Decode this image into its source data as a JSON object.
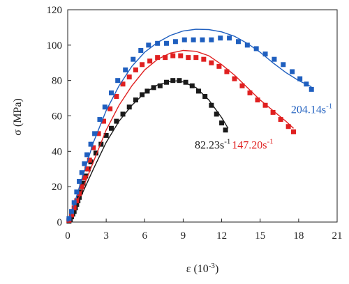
{
  "chart_data": {
    "type": "scatter",
    "xlabel": "ε (10",
    "xlabel_sup": "-3",
    "xlabel_close": ")",
    "ylabel": "σ (MPa)",
    "xlim": [
      0,
      21
    ],
    "ylim": [
      0,
      120
    ],
    "xticks": [
      0,
      3,
      6,
      9,
      12,
      15,
      18,
      21
    ],
    "yticks": [
      0,
      20,
      40,
      60,
      80,
      100,
      120
    ],
    "grid": false,
    "series": [
      {
        "name": "82.23s",
        "name_sup": "-1",
        "color": "#1a1a1a",
        "points": [
          [
            0.1,
            0.5
          ],
          [
            0.2,
            1.5
          ],
          [
            0.3,
            3
          ],
          [
            0.4,
            4.5
          ],
          [
            0.5,
            6
          ],
          [
            0.6,
            8
          ],
          [
            0.7,
            10
          ],
          [
            0.8,
            12
          ],
          [
            0.9,
            14
          ],
          [
            1.0,
            17
          ],
          [
            1.1,
            20
          ],
          [
            1.2,
            22
          ],
          [
            1.4,
            26
          ],
          [
            1.6,
            30
          ],
          [
            1.8,
            34
          ],
          [
            2.2,
            39
          ],
          [
            2.6,
            44
          ],
          [
            3.0,
            49
          ],
          [
            3.4,
            53
          ],
          [
            3.8,
            57
          ],
          [
            4.3,
            61
          ],
          [
            4.8,
            65
          ],
          [
            5.3,
            69
          ],
          [
            5.8,
            72
          ],
          [
            6.2,
            74
          ],
          [
            6.7,
            76
          ],
          [
            7.2,
            77
          ],
          [
            7.7,
            79
          ],
          [
            8.2,
            80
          ],
          [
            8.7,
            80
          ],
          [
            9.2,
            79
          ],
          [
            9.7,
            77
          ],
          [
            10.2,
            74
          ],
          [
            10.7,
            71
          ],
          [
            11.2,
            66
          ],
          [
            11.6,
            61
          ],
          [
            12.0,
            56
          ],
          [
            12.3,
            52
          ]
        ],
        "fit": [
          [
            0,
            0
          ],
          [
            0.5,
            7
          ],
          [
            1,
            14
          ],
          [
            2,
            30
          ],
          [
            3,
            45
          ],
          [
            4,
            57
          ],
          [
            5,
            66
          ],
          [
            6,
            73
          ],
          [
            7,
            77.5
          ],
          [
            8,
            79.5
          ],
          [
            8.5,
            79.8
          ],
          [
            9,
            79.2
          ],
          [
            10,
            76
          ],
          [
            11,
            69
          ],
          [
            12,
            59
          ],
          [
            12.5,
            53
          ]
        ]
      },
      {
        "name": "147.20s",
        "name_sup": "-1",
        "color": "#e02020",
        "points": [
          [
            0.1,
            1
          ],
          [
            0.3,
            4
          ],
          [
            0.5,
            8
          ],
          [
            0.7,
            12
          ],
          [
            0.9,
            16
          ],
          [
            1.1,
            20
          ],
          [
            1.3,
            25
          ],
          [
            1.5,
            30
          ],
          [
            1.7,
            35
          ],
          [
            2.0,
            42
          ],
          [
            2.4,
            50
          ],
          [
            2.8,
            57
          ],
          [
            3.3,
            64
          ],
          [
            3.8,
            71
          ],
          [
            4.3,
            78
          ],
          [
            4.8,
            82
          ],
          [
            5.3,
            86
          ],
          [
            5.8,
            89
          ],
          [
            6.4,
            91
          ],
          [
            7.0,
            93
          ],
          [
            7.6,
            93
          ],
          [
            8.2,
            94
          ],
          [
            8.8,
            94
          ],
          [
            9.4,
            93
          ],
          [
            10.0,
            93
          ],
          [
            10.6,
            92
          ],
          [
            11.2,
            90
          ],
          [
            11.8,
            88
          ],
          [
            12.4,
            85
          ],
          [
            13.0,
            81
          ],
          [
            13.6,
            77
          ],
          [
            14.2,
            73
          ],
          [
            14.8,
            69
          ],
          [
            15.4,
            66
          ],
          [
            16.0,
            62
          ],
          [
            16.6,
            58
          ],
          [
            17.2,
            54
          ],
          [
            17.6,
            51
          ]
        ],
        "fit": [
          [
            0,
            0
          ],
          [
            0.5,
            8
          ],
          [
            1,
            16
          ],
          [
            2,
            34
          ],
          [
            3,
            52
          ],
          [
            4,
            66
          ],
          [
            5,
            77
          ],
          [
            6,
            86
          ],
          [
            7,
            92
          ],
          [
            8,
            95.5
          ],
          [
            9,
            97
          ],
          [
            10,
            96.5
          ],
          [
            11,
            94
          ],
          [
            12,
            89
          ],
          [
            13,
            83
          ],
          [
            14,
            76
          ],
          [
            15,
            69
          ],
          [
            16,
            63
          ],
          [
            17,
            57
          ],
          [
            17.6,
            53
          ]
        ]
      },
      {
        "name": "204.14s",
        "name_sup": "-1",
        "color": "#1f5fbf",
        "points": [
          [
            0.1,
            2
          ],
          [
            0.3,
            6
          ],
          [
            0.5,
            11
          ],
          [
            0.7,
            17
          ],
          [
            0.9,
            23
          ],
          [
            1.1,
            28
          ],
          [
            1.3,
            33
          ],
          [
            1.5,
            38
          ],
          [
            1.8,
            44
          ],
          [
            2.1,
            50
          ],
          [
            2.5,
            58
          ],
          [
            2.9,
            65
          ],
          [
            3.4,
            73
          ],
          [
            3.9,
            80
          ],
          [
            4.5,
            86
          ],
          [
            5.1,
            92
          ],
          [
            5.7,
            97
          ],
          [
            6.3,
            100
          ],
          [
            7.0,
            101
          ],
          [
            7.7,
            101
          ],
          [
            8.4,
            102
          ],
          [
            9.1,
            103
          ],
          [
            9.8,
            103
          ],
          [
            10.5,
            103
          ],
          [
            11.2,
            103
          ],
          [
            11.9,
            104
          ],
          [
            12.6,
            104
          ],
          [
            13.3,
            102
          ],
          [
            14.0,
            100
          ],
          [
            14.7,
            98
          ],
          [
            15.4,
            95
          ],
          [
            16.1,
            92
          ],
          [
            16.8,
            89
          ],
          [
            17.5,
            85
          ],
          [
            18.1,
            81
          ],
          [
            18.6,
            78
          ],
          [
            19.0,
            75
          ]
        ],
        "fit": [
          [
            0,
            0
          ],
          [
            0.5,
            10
          ],
          [
            1,
            22
          ],
          [
            2,
            45
          ],
          [
            3,
            63
          ],
          [
            4,
            77
          ],
          [
            5,
            88
          ],
          [
            6,
            96
          ],
          [
            7,
            101.5
          ],
          [
            8,
            105.5
          ],
          [
            9,
            108
          ],
          [
            10,
            109
          ],
          [
            11,
            108.8
          ],
          [
            12,
            107.5
          ],
          [
            13,
            105
          ],
          [
            14,
            101
          ],
          [
            15,
            96
          ],
          [
            16,
            90
          ],
          [
            17,
            84.5
          ],
          [
            18,
            80
          ],
          [
            19,
            76.5
          ]
        ]
      }
    ],
    "labels": [
      {
        "series": 0,
        "text": "82.23s",
        "sup": "-1",
        "x": 9.9,
        "y": 41.5
      },
      {
        "series": 1,
        "text": "147.20s",
        "sup": "-1",
        "x": 12.8,
        "y": 41.5
      },
      {
        "series": 2,
        "text": "204.14s",
        "sup": "-1",
        "x": 17.4,
        "y": 61.5
      }
    ]
  }
}
